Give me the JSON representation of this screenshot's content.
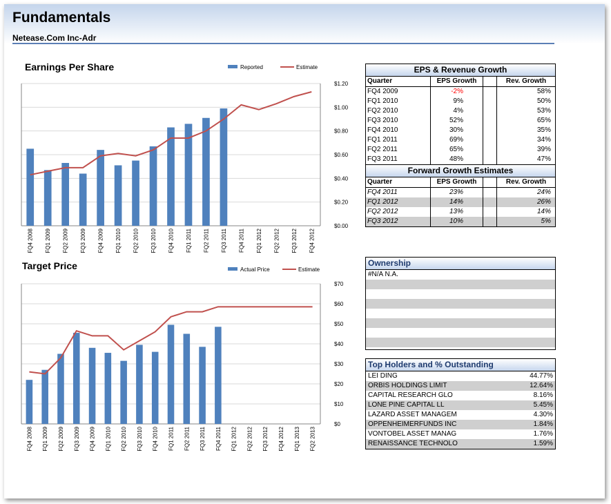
{
  "header": {
    "title": "Fundamentals",
    "subtitle": "Netease.Com Inc-Adr"
  },
  "eps_chart": {
    "title": "Earnings Per Share",
    "legend": {
      "bar": "Reported",
      "line": "Estimate"
    },
    "bar_color": "#4f81bd",
    "line_color": "#c0504d"
  },
  "target_chart": {
    "title": "Target Price",
    "legend": {
      "bar": "Actual Price",
      "line": "Estimate"
    },
    "bar_color": "#4f81bd",
    "line_color": "#c0504d"
  },
  "chart_data": [
    {
      "type": "bar",
      "title": "Earnings Per Share",
      "categories": [
        "FQ4 2008",
        "FQ1 2009",
        "FQ2 2009",
        "FQ3 2009",
        "FQ4 2009",
        "FQ1 2010",
        "FQ2 2010",
        "FQ3 2010",
        "FQ4 2010",
        "FQ1 2011",
        "FQ2 2011",
        "FQ3 2011",
        "FQ4 2011",
        "FQ1 2012",
        "FQ2 2012",
        "FQ3 2012",
        "FQ4 2012"
      ],
      "series": [
        {
          "name": "Reported",
          "type": "bar",
          "values": [
            0.65,
            0.47,
            0.53,
            0.44,
            0.64,
            0.51,
            0.55,
            0.67,
            0.83,
            0.86,
            0.91,
            0.99,
            null,
            null,
            null,
            null,
            null
          ]
        },
        {
          "name": "Estimate",
          "type": "line",
          "values": [
            0.43,
            0.46,
            0.49,
            0.49,
            0.59,
            0.61,
            0.59,
            0.64,
            0.74,
            0.74,
            0.8,
            0.9,
            1.02,
            0.98,
            1.03,
            1.09,
            1.13
          ]
        }
      ],
      "ylim": [
        0,
        1.2
      ],
      "yticks": [
        "$0.00",
        "$0.20",
        "$0.40",
        "$0.60",
        "$0.80",
        "$1.00",
        "$1.20"
      ],
      "yaxis_position": "right",
      "legend_position": "top-right"
    },
    {
      "type": "bar",
      "title": "Target Price",
      "categories": [
        "FQ4 2008",
        "FQ1 2009",
        "FQ2 2009",
        "FQ3 2009",
        "FQ4 2009",
        "FQ1 2010",
        "FQ2 2010",
        "FQ3 2010",
        "FQ4 2010",
        "FQ1 2011",
        "FQ2 2011",
        "FQ3 2011",
        "FQ4 2011",
        "FQ1 2012",
        "FQ2 2012",
        "FQ3 2012",
        "FQ4 2012",
        "FQ1 2013",
        "FQ2 2013"
      ],
      "series": [
        {
          "name": "Actual Price",
          "type": "bar",
          "values": [
            22,
            27,
            35,
            45.5,
            38,
            35.5,
            31.5,
            39.5,
            36,
            49.5,
            45,
            38.5,
            48.5,
            null,
            null,
            null,
            null,
            null,
            null
          ]
        },
        {
          "name": "Estimate",
          "type": "line",
          "values": [
            26,
            25,
            33,
            46.5,
            44,
            44,
            37,
            41.5,
            46,
            53.5,
            56,
            56,
            58.5,
            58.5,
            58.5,
            58.5,
            58.5,
            58.5,
            58.5
          ]
        }
      ],
      "ylim": [
        0,
        70
      ],
      "yticks": [
        "$0",
        "$10",
        "$20",
        "$30",
        "$40",
        "$50",
        "$60",
        "$70"
      ],
      "yaxis_position": "right",
      "legend_position": "top-right"
    }
  ],
  "growth_table": {
    "title": "EPS & Revenue Growth",
    "headers": [
      "Quarter",
      "EPS Growth",
      "Rev. Growth"
    ],
    "rows": [
      [
        "FQ4 2009",
        "-2%",
        "58%"
      ],
      [
        "FQ1 2010",
        "9%",
        "50%"
      ],
      [
        "FQ2 2010",
        "4%",
        "53%"
      ],
      [
        "FQ3 2010",
        "52%",
        "65%"
      ],
      [
        "FQ4 2010",
        "30%",
        "35%"
      ],
      [
        "FQ1 2011",
        "69%",
        "34%"
      ],
      [
        "FQ2 2011",
        "65%",
        "39%"
      ],
      [
        "FQ3 2011",
        "48%",
        "47%"
      ]
    ],
    "forward_title": "Forward Growth Estimates",
    "forward_rows": [
      [
        "FQ4 2011",
        "23%",
        "24%"
      ],
      [
        "FQ1 2012",
        "14%",
        "26%"
      ],
      [
        "FQ2 2012",
        "13%",
        "14%"
      ],
      [
        "FQ3 2012",
        "10%",
        "5%"
      ]
    ]
  },
  "ownership": {
    "title": "Ownership",
    "first_row": "#N/A N.A."
  },
  "holders": {
    "title": "Top Holders and % Outstanding",
    "rows": [
      [
        "LEI DING",
        "44.77%"
      ],
      [
        "ORBIS HOLDINGS LIMIT",
        "12.64%"
      ],
      [
        "CAPITAL RESEARCH GLO",
        "8.16%"
      ],
      [
        "LONE PINE CAPITAL LL",
        "5.45%"
      ],
      [
        "LAZARD ASSET MANAGEM",
        "4.30%"
      ],
      [
        "OPPENHEIMERFUNDS INC",
        "1.84%"
      ],
      [
        "VONTOBEL ASSET MANAG",
        "1.76%"
      ],
      [
        "RENAISSANCE TECHNOLO",
        "1.59%"
      ]
    ]
  }
}
